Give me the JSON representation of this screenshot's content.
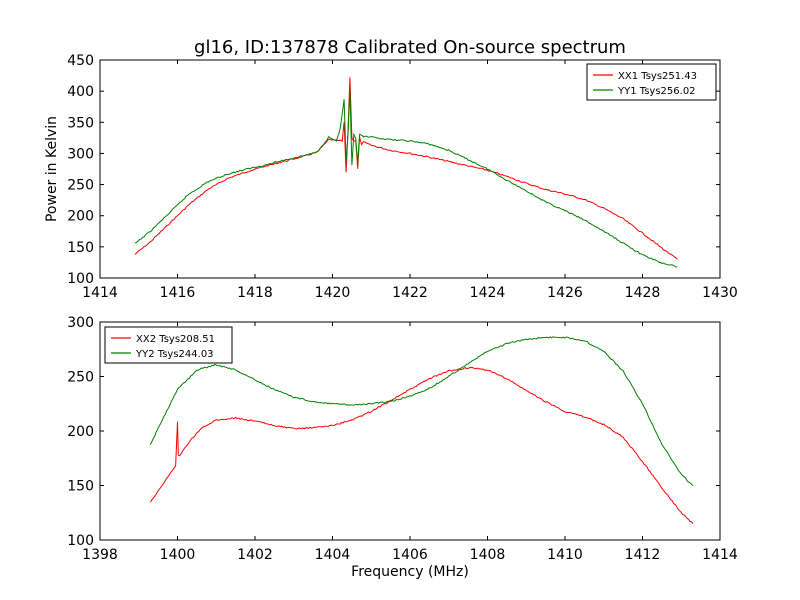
{
  "title": "gl16, ID:137878 Calibrated On-source spectrum",
  "chart_data": [
    {
      "type": "line",
      "title": "gl16, ID:137878 Calibrated On-source spectrum",
      "xlabel": "",
      "ylabel": "Power in Kelvin",
      "xlim": [
        1414,
        1430
      ],
      "ylim": [
        100,
        450
      ],
      "xticks": [
        1414,
        1416,
        1418,
        1420,
        1422,
        1424,
        1426,
        1428,
        1430
      ],
      "yticks": [
        100,
        150,
        200,
        250,
        300,
        350,
        400,
        450
      ],
      "legend_position": "top-right",
      "grid": false,
      "series": [
        {
          "name": "XX1 Tsys251.43",
          "color": "#ff0000",
          "x": [
            1414.9,
            1415.3,
            1415.8,
            1416.3,
            1416.8,
            1417.3,
            1417.8,
            1418.3,
            1418.8,
            1419.3,
            1419.6,
            1419.9,
            1420.1,
            1420.25,
            1420.3,
            1420.35,
            1420.4,
            1420.45,
            1420.5,
            1420.55,
            1420.6,
            1420.65,
            1420.7,
            1420.75,
            1420.8,
            1421.0,
            1421.5,
            1422.0,
            1422.5,
            1423.0,
            1423.5,
            1424.0,
            1424.5,
            1425.0,
            1425.5,
            1426.0,
            1426.5,
            1427.0,
            1427.5,
            1428.0,
            1428.5,
            1428.9
          ],
          "values": [
            138,
            158,
            188,
            218,
            243,
            260,
            271,
            280,
            288,
            296,
            302,
            322,
            321,
            320,
            350,
            270,
            335,
            423,
            325,
            320,
            320,
            275,
            325,
            315,
            318,
            313,
            305,
            300,
            294,
            287,
            280,
            273,
            263,
            252,
            242,
            235,
            226,
            212,
            195,
            172,
            148,
            130
          ]
        },
        {
          "name": "YY1 Tsys256.02",
          "color": "#008000",
          "x": [
            1414.9,
            1415.3,
            1415.8,
            1416.3,
            1416.8,
            1417.3,
            1417.8,
            1418.3,
            1418.8,
            1419.3,
            1419.6,
            1419.9,
            1420.1,
            1420.2,
            1420.3,
            1420.35,
            1420.4,
            1420.45,
            1420.5,
            1420.55,
            1420.6,
            1420.65,
            1420.7,
            1420.8,
            1421.0,
            1421.5,
            1422.0,
            1422.5,
            1423.0,
            1423.5,
            1424.0,
            1424.5,
            1425.0,
            1425.5,
            1426.0,
            1426.5,
            1427.0,
            1427.5,
            1428.0,
            1428.5,
            1428.9
          ],
          "values": [
            155,
            175,
            205,
            235,
            255,
            267,
            275,
            282,
            290,
            297,
            302,
            326,
            320,
            340,
            386,
            285,
            330,
            400,
            280,
            330,
            325,
            285,
            330,
            327,
            326,
            322,
            320,
            315,
            305,
            290,
            275,
            257,
            240,
            222,
            208,
            193,
            175,
            156,
            137,
            124,
            118
          ]
        }
      ]
    },
    {
      "type": "line",
      "title": "",
      "xlabel": "Frequency (MHz)",
      "ylabel": "",
      "xlim": [
        1398,
        1414
      ],
      "ylim": [
        100,
        300
      ],
      "xticks": [
        1398,
        1400,
        1402,
        1404,
        1406,
        1408,
        1410,
        1412,
        1414
      ],
      "yticks": [
        100,
        150,
        200,
        250,
        300
      ],
      "legend_position": "top-left",
      "grid": false,
      "series": [
        {
          "name": "XX2 Tsys208.51",
          "color": "#ff0000",
          "x": [
            1399.3,
            1399.6,
            1399.95,
            1400.0,
            1400.02,
            1400.05,
            1400.3,
            1400.6,
            1401.0,
            1401.5,
            1402.0,
            1402.5,
            1403.0,
            1403.5,
            1404.0,
            1404.5,
            1405.0,
            1405.5,
            1406.0,
            1406.5,
            1407.0,
            1407.5,
            1408.0,
            1408.5,
            1409.0,
            1409.5,
            1410.0,
            1410.5,
            1411.0,
            1411.5,
            1412.0,
            1412.5,
            1413.0,
            1413.3
          ],
          "values": [
            135,
            150,
            168,
            209,
            178,
            177,
            190,
            202,
            210,
            212,
            209,
            205,
            202,
            203,
            205,
            210,
            218,
            228,
            238,
            248,
            255,
            258,
            256,
            248,
            237,
            227,
            218,
            213,
            206,
            194,
            172,
            148,
            125,
            115
          ]
        },
        {
          "name": "YY2 Tsys244.03",
          "color": "#008000",
          "x": [
            1399.3,
            1399.6,
            1400.0,
            1400.5,
            1401.0,
            1401.5,
            1402.0,
            1402.5,
            1403.0,
            1403.5,
            1404.0,
            1404.5,
            1405.0,
            1405.5,
            1406.0,
            1406.5,
            1407.0,
            1407.5,
            1408.0,
            1408.5,
            1409.0,
            1409.5,
            1410.0,
            1410.5,
            1411.0,
            1411.5,
            1412.0,
            1412.5,
            1413.0,
            1413.3
          ],
          "values": [
            187,
            210,
            238,
            256,
            261,
            256,
            247,
            238,
            231,
            227,
            225,
            224,
            225,
            227,
            232,
            239,
            250,
            262,
            273,
            280,
            284,
            286,
            286,
            283,
            273,
            255,
            225,
            188,
            160,
            150
          ]
        }
      ]
    }
  ]
}
